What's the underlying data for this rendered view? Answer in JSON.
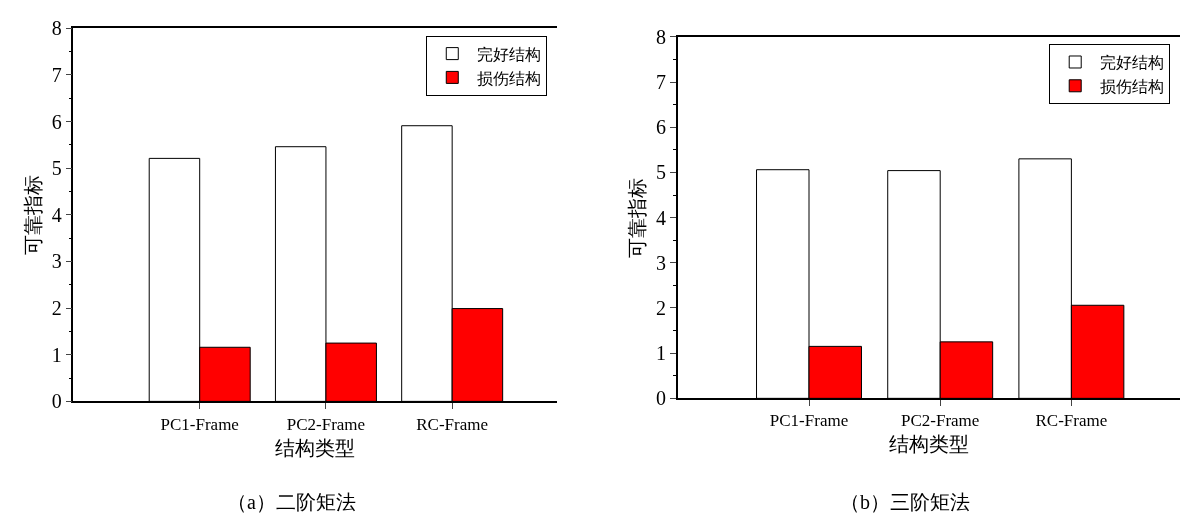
{
  "chart_data": [
    {
      "type": "bar",
      "categories": [
        "PC1-Frame",
        "PC2-Frame",
        "RC-Frame"
      ],
      "xlabel": "结构类型",
      "ylabel": "可靠指标",
      "ylim": [
        0,
        8
      ],
      "yticks": [
        0,
        1,
        2,
        3,
        4,
        5,
        6,
        7,
        8
      ],
      "legend": "top right",
      "series": [
        {
          "name": "完好结构",
          "color": "#ffffff",
          "values": [
            5.21,
            5.46,
            5.91
          ]
        },
        {
          "name": "损伤结构",
          "color": "#ff0000",
          "values": [
            1.16,
            1.25,
            1.99
          ]
        }
      ],
      "annotations": [
        "（a）二阶矩法"
      ]
    },
    {
      "type": "bar",
      "categories": [
        "PC1-Frame",
        "PC2-Frame",
        "RC-Frame"
      ],
      "xlabel": "结构类型",
      "ylabel": "可靠指标",
      "ylim": [
        0,
        8
      ],
      "yticks": [
        0,
        1,
        2,
        3,
        4,
        5,
        6,
        7,
        8
      ],
      "legend": "top right",
      "series": [
        {
          "name": "完好结构",
          "color": "#ffffff",
          "values": [
            5.06,
            5.04,
            5.3
          ]
        },
        {
          "name": "损伤结构",
          "color": "#ff0000",
          "values": [
            1.15,
            1.25,
            2.06
          ]
        }
      ],
      "annotations": [
        "（b）三阶矩法"
      ]
    }
  ]
}
